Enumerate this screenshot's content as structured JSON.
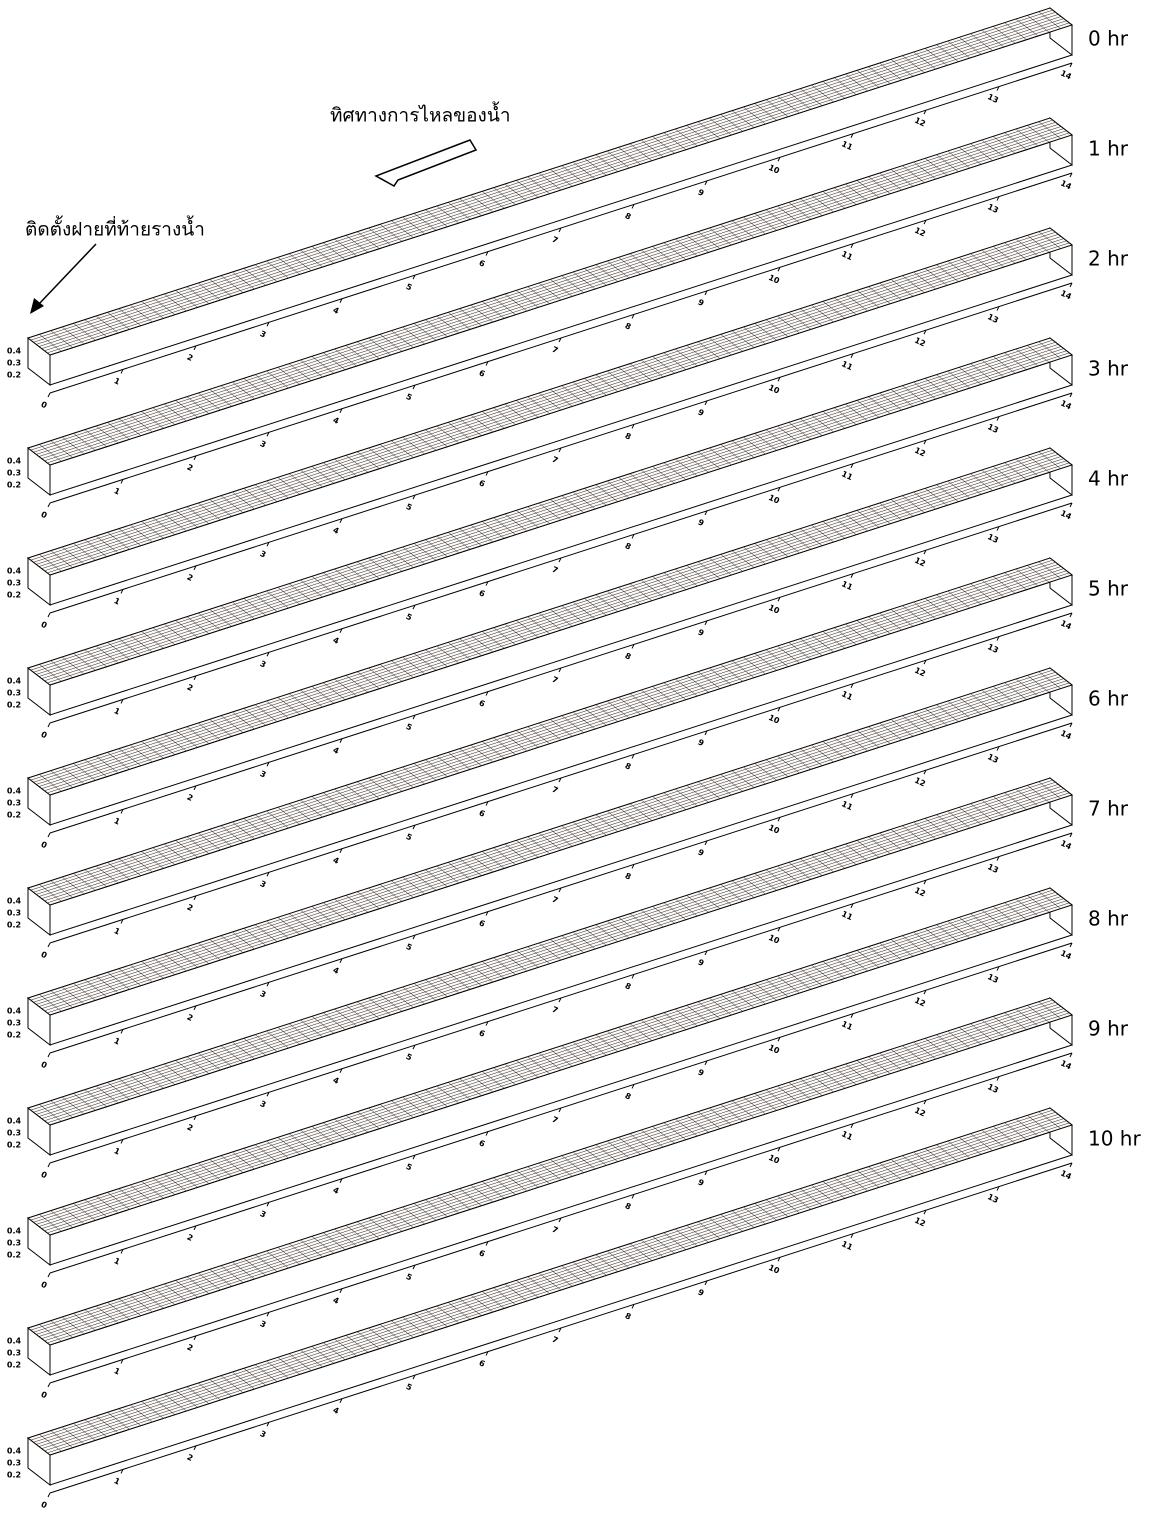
{
  "annotations": {
    "flow_direction": "ทิศทางการไหลของน้ำ",
    "weir": "ติดตั้งฝายที่ท้ายรางน้ำ"
  },
  "panels": [
    {
      "label": "0 hr"
    },
    {
      "label": "1 hr"
    },
    {
      "label": "2 hr"
    },
    {
      "label": "3 hr"
    },
    {
      "label": "4 hr"
    },
    {
      "label": "5 hr"
    },
    {
      "label": "6 hr"
    },
    {
      "label": "7 hr"
    },
    {
      "label": "8 hr"
    },
    {
      "label": "9 hr"
    },
    {
      "label": "10 hr"
    }
  ],
  "x_ticks": [
    "0",
    "1",
    "2",
    "3",
    "4",
    "5",
    "6",
    "7",
    "8",
    "9",
    "10",
    "11",
    "12",
    "13",
    "14"
  ],
  "z_ticks": [
    "0.2",
    "0.3",
    "0.4"
  ]
}
